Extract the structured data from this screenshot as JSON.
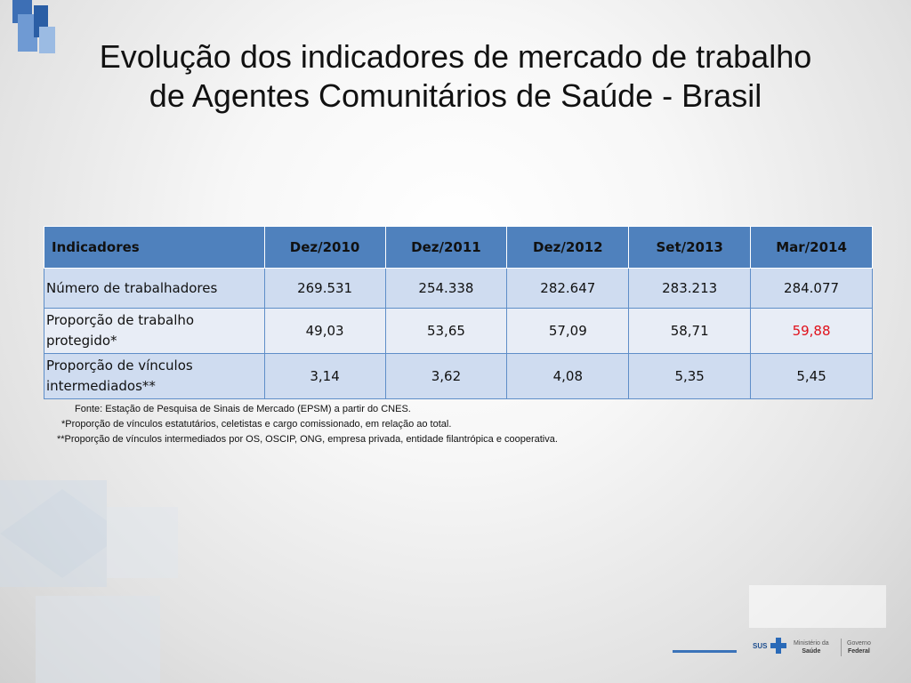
{
  "title": {
    "line1": "Evolução dos indicadores de mercado de trabalho",
    "line2": "de Agentes Comunitários de Saúde - Brasil"
  },
  "table": {
    "headers": [
      "Indicadores",
      "Dez/2010",
      "Dez/2011",
      "Dez/2012",
      "Set/2013",
      "Mar/2014"
    ],
    "rows": [
      {
        "label": "Número de trabalhadores",
        "values": [
          "269.531",
          "254.338",
          "282.647",
          "283.213",
          "284.077"
        ]
      },
      {
        "label": "Proporção de trabalho protegido*",
        "values": [
          "49,03",
          "53,65",
          "57,09",
          "58,71",
          "59,88"
        ]
      },
      {
        "label": "Proporção de vínculos intermediados**",
        "values": [
          "3,14",
          "3,62",
          "4,08",
          "5,35",
          "5,45"
        ]
      }
    ],
    "highlight_color": "#e0101a",
    "header_color": "#4f81bd"
  },
  "notes": {
    "source": "Fonte: Estação de Pesquisa de Sinais de Mercado (EPSM) a partir do CNES.",
    "note1": "*Proporção de vínculos estatutários, celetistas e cargo comissionado, em relação ao total.",
    "note2": "**Proporção de vínculos intermediados por OS, OSCIP, ONG, empresa privada, entidade filantrópica e cooperativa."
  },
  "footer_logo": {
    "sus": "SUS",
    "ministerio_top": "Ministério da",
    "ministerio_bottom": "Saúde",
    "governo_top": "Governo",
    "governo_bottom": "Federal"
  },
  "icons": {
    "top_left": "blue-squares-decoration-icon",
    "cross": "blue-cross-icon"
  }
}
